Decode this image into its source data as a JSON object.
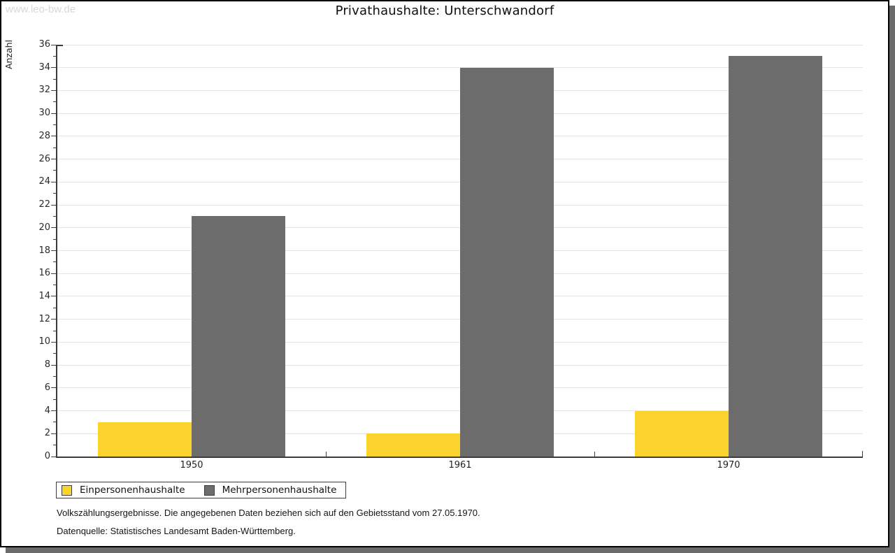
{
  "watermark": "www.leo-bw.de",
  "title": "Privathaushalte: Unterschwandorf",
  "chart_data": {
    "type": "bar",
    "title": "Privathaushalte: Unterschwandorf",
    "categories": [
      "1950",
      "1961",
      "1970"
    ],
    "series": [
      {
        "name": "Einpersonenhaushalte",
        "color": "#fcd32d",
        "values": [
          3,
          2,
          4
        ]
      },
      {
        "name": "Mehrpersonenhaushalte",
        "color": "#6c6c6c",
        "values": [
          21,
          34,
          35
        ]
      }
    ],
    "xlabel": "",
    "ylabel": "Anzahl",
    "ylim": [
      0,
      36
    ],
    "ytick_step": 2,
    "minor_tick_step": 1,
    "grid": true,
    "gridline_color": "#e4e4e4",
    "legend_position": "bottom-left"
  },
  "footer": {
    "line1": "Volkszählungsergebnisse. Die angegebenen Daten beziehen sich auf den Gebietsstand vom 27.05.1970.",
    "line2": "Datenquelle: Statistisches Landesamt Baden-Württemberg."
  }
}
